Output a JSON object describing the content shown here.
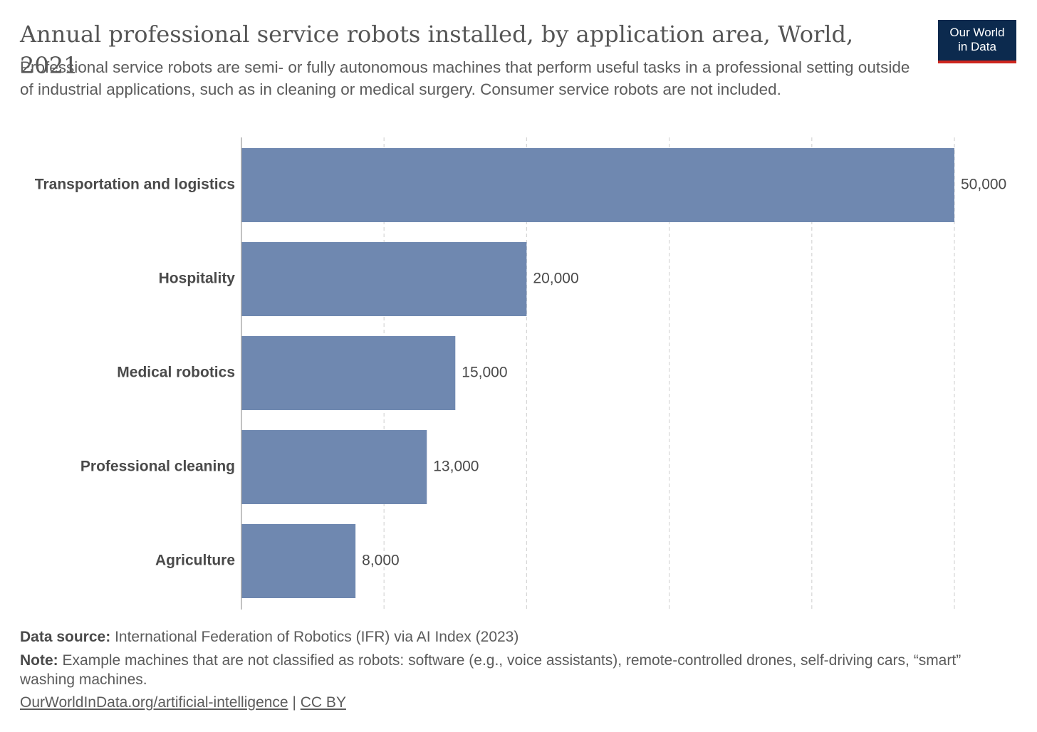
{
  "header": {
    "title": "Annual professional service robots installed, by application area, World, 2021",
    "subtitle": "Professional service robots are semi- or fully autonomous machines that perform useful tasks in a professional setting outside of industrial applications, such as in cleaning or medical surgery. Consumer service robots are not included."
  },
  "logo": {
    "line1": "Our World",
    "line2": "in Data",
    "bg_color": "#0c2a4e",
    "accent_color": "#ce261e"
  },
  "chart_data": {
    "type": "bar",
    "orientation": "horizontal",
    "categories": [
      "Transportation and logistics",
      "Hospitality",
      "Medical robotics",
      "Professional cleaning",
      "Agriculture"
    ],
    "values": [
      50000,
      20000,
      15000,
      13000,
      8000
    ],
    "value_labels": [
      "50,000",
      "20,000",
      "15,000",
      "13,000",
      "8,000"
    ],
    "xlim": [
      0,
      50000
    ],
    "grid_ticks": [
      0,
      10000,
      20000,
      30000,
      40000,
      50000
    ],
    "grid": true,
    "bar_color": "#6f88b0"
  },
  "footer": {
    "source_label": "Data source:",
    "source_text": "International Federation of Robotics (IFR) via AI Index (2023)",
    "note_label": "Note:",
    "note_text": "Example machines that are not classified as robots: software (e.g., voice assistants), remote-controlled drones, self-driving cars, “smart” washing machines.",
    "link_text": "OurWorldInData.org/artificial-intelligence",
    "separator": "|",
    "license": "CC BY"
  }
}
